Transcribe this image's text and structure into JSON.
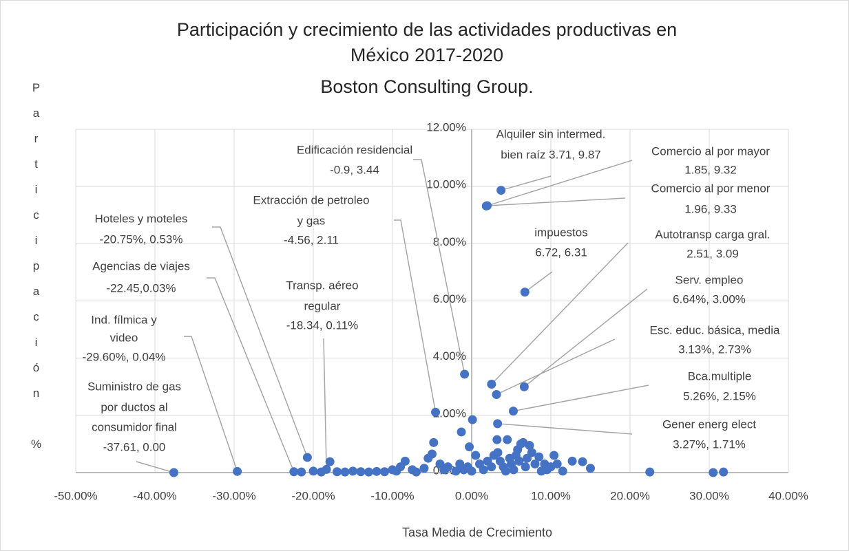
{
  "chart_data": {
    "type": "scatter",
    "title": [
      "Participación y crecimiento de las actividades productivas en",
      "México 2017-2020",
      "Boston Consulting Group."
    ],
    "xlabel": "Tasa Media de Crecimiento",
    "ylabel": "Participación %",
    "color": "#4472c4",
    "grid": true,
    "xlim": [
      -50,
      40
    ],
    "ylim": [
      0,
      12
    ],
    "xticks": [
      {
        "value": -50,
        "label": "-50.00%"
      },
      {
        "value": -40,
        "label": "-40.00%"
      },
      {
        "value": -30,
        "label": "-30.00%"
      },
      {
        "value": -20,
        "label": "-20.00%"
      },
      {
        "value": -10,
        "label": "-10.00%"
      },
      {
        "value": 0,
        "label": "0.00%"
      },
      {
        "value": 10,
        "label": "10.00%"
      },
      {
        "value": 20,
        "label": "20.00%"
      },
      {
        "value": 30,
        "label": "30.00%"
      },
      {
        "value": 40,
        "label": "40.00%"
      }
    ],
    "yticks": [
      {
        "value": 0,
        "label": "0.00%"
      },
      {
        "value": 2,
        "label": "2.00%"
      },
      {
        "value": 4,
        "label": "4.00%"
      },
      {
        "value": 6,
        "label": "6.00%"
      },
      {
        "value": 8,
        "label": "8.00%"
      },
      {
        "value": 10,
        "label": "10.00%"
      },
      {
        "value": 12,
        "label": "12.00%"
      }
    ],
    "x": [
      3.71,
      1.85,
      1.96,
      6.72,
      2.51,
      6.64,
      3.13,
      5.26,
      3.27,
      -0.9,
      -4.56,
      -20.75,
      -22.45,
      -18.34,
      -29.6,
      -37.61,
      0.1,
      -1.3,
      -4.8,
      -0.3,
      -5,
      -8.4,
      -17.9,
      -20,
      -21.5,
      -19,
      -17,
      -16,
      -15,
      -14,
      -13,
      -12,
      -11,
      -10,
      -9.5,
      -9,
      -7.5,
      -7,
      -6,
      -5.5,
      -4,
      -3.5,
      -3,
      -2,
      -1.5,
      -1,
      -0.5,
      0,
      0.5,
      1,
      1.5,
      2,
      2.5,
      2.8,
      3.2,
      3.3,
      3.6,
      4,
      4.3,
      4.5,
      4.8,
      5,
      5.3,
      5.6,
      5.8,
      6,
      6.2,
      6.5,
      6.8,
      7,
      7.3,
      7.6,
      8,
      8.5,
      8.8,
      9.2,
      9.5,
      10,
      10.4,
      10.8,
      11.5,
      12.7,
      14,
      15,
      22.5,
      30.5,
      31.8
    ],
    "y": [
      9.87,
      9.32,
      9.33,
      6.31,
      3.09,
      3.0,
      2.73,
      2.15,
      1.71,
      3.44,
      2.11,
      0.53,
      0.03,
      0.11,
      0.04,
      0.0,
      1.85,
      1.42,
      1.05,
      0.9,
      0.65,
      0.4,
      0.38,
      0.05,
      0.02,
      0.02,
      0.03,
      0.02,
      0.05,
      0.03,
      0.02,
      0.04,
      0.03,
      0.1,
      0.05,
      0.2,
      0.1,
      0.02,
      0.15,
      0.5,
      0.3,
      0.1,
      0.2,
      0.05,
      0.3,
      0.1,
      0.2,
      0.05,
      0.6,
      0.3,
      0.1,
      0.4,
      0.2,
      0.6,
      1.15,
      0.7,
      0.4,
      0.2,
      0.05,
      1.15,
      0.5,
      0.3,
      0.1,
      0.6,
      0.8,
      0.4,
      1.0,
      1.05,
      0.2,
      0.5,
      0.95,
      0.7,
      0.3,
      0.55,
      0.05,
      0.3,
      0.1,
      0.2,
      0.6,
      0.3,
      0.05,
      0.4,
      0.38,
      0.15,
      0.02,
      0.0,
      0.02
    ],
    "annotations": [
      [
        "Alquiler sin intermed.",
        "bien raíz 3.71, 9.87"
      ],
      [
        "Comercio al por mayor",
        "1.85, 9.32"
      ],
      [
        "Comercio al por menor",
        "1.96, 9.33"
      ],
      [
        "impuestos",
        "6.72, 6.31"
      ],
      [
        "Autotransp carga gral.",
        "2.51, 3.09"
      ],
      [
        "Serv. empleo",
        "6.64%, 3.00%"
      ],
      [
        "Esc. educ. básica, media",
        "3.13%, 2.73%"
      ],
      [
        "Bca.multiple",
        "5.26%, 2.15%"
      ],
      [
        "Gener energ elect",
        "3.27%, 1.71%"
      ],
      [
        "Edificación residencial",
        "-0.9, 3.44"
      ],
      [
        "Extracción de petroleo",
        "y gas",
        "-4.56, 2.11"
      ],
      [
        "Hoteles y moteles",
        "-20.75%, 0.53%"
      ],
      [
        "Agencias de viajes",
        "-22.45,0.03%"
      ],
      [
        "Transp. aéreo",
        "regular",
        "-18.34, 0.11%"
      ],
      [
        "Ind. fílmica y",
        "video",
        "-29.60%, 0.04%"
      ],
      [
        "Suministro de gas",
        "por ductos al",
        "consumidor final",
        "-37.61, 0.00"
      ]
    ]
  }
}
